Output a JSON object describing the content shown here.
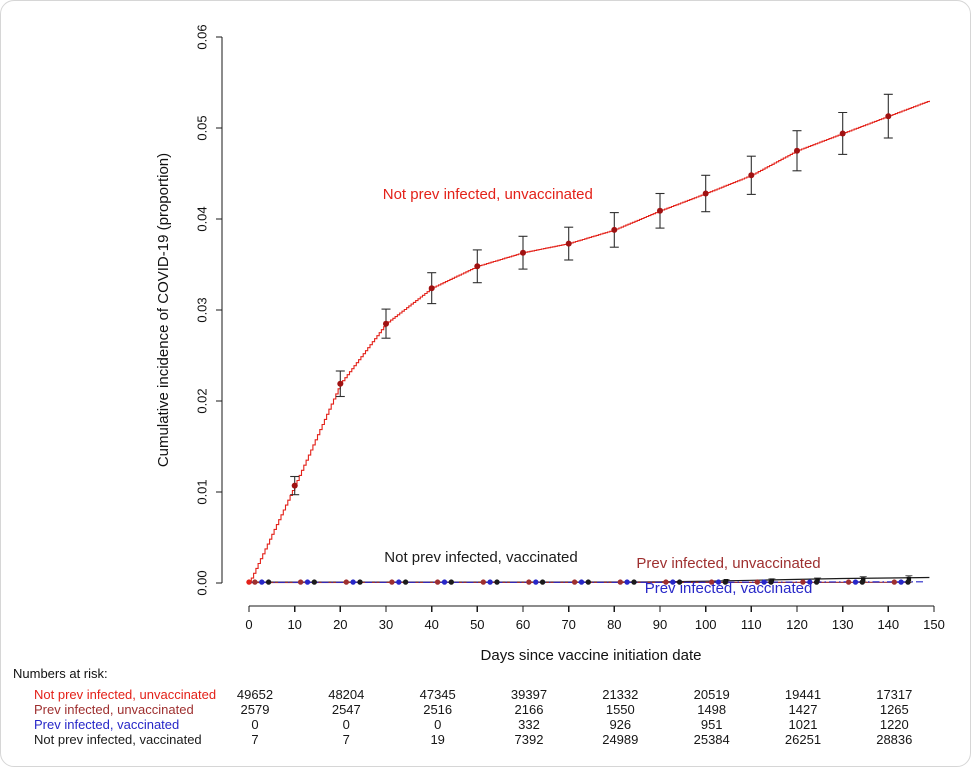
{
  "chart_data": {
    "type": "line",
    "title": "",
    "xlabel": "Days since vaccine initiation date",
    "ylabel": "Cumulative incidence of COVID-19 (proportion)",
    "xlim": [
      0,
      150
    ],
    "ylim": [
      0,
      0.06
    ],
    "xticks": [
      0,
      10,
      20,
      30,
      40,
      50,
      60,
      70,
      80,
      90,
      100,
      110,
      120,
      130,
      140,
      150
    ],
    "ytick_labels": [
      "0.00",
      "0.01",
      "0.02",
      "0.03",
      "0.04",
      "0.05",
      "0.06"
    ],
    "grid": false,
    "legend": "in-plot colored labels",
    "series": [
      {
        "name": "Not prev infected, unvaccinated",
        "style": "step",
        "color": "#e32119",
        "marker_color": "#a01212",
        "x": [
          0,
          10,
          20,
          30,
          40,
          50,
          60,
          70,
          80,
          90,
          100,
          110,
          120,
          130,
          140,
          149
        ],
        "y": [
          0,
          0.0107,
          0.0219,
          0.0285,
          0.0324,
          0.0348,
          0.0363,
          0.0373,
          0.0388,
          0.0409,
          0.0428,
          0.0448,
          0.0475,
          0.0494,
          0.0513,
          0.053
        ],
        "marker_days": [
          10,
          20,
          30,
          40,
          50,
          60,
          70,
          80,
          90,
          100,
          110,
          120,
          130,
          140
        ],
        "marker_ci": [
          0.001,
          0.0014,
          0.0016,
          0.0017,
          0.0018,
          0.0018,
          0.0018,
          0.0019,
          0.0019,
          0.002,
          0.0021,
          0.0022,
          0.0023,
          0.0024
        ],
        "label_at": [
          52.3,
          0.0422
        ]
      },
      {
        "name": "Not prev infected, vaccinated",
        "style": "line",
        "color": "#1b1b1b",
        "x": [
          0,
          60,
          90,
          100,
          110,
          120,
          130,
          140,
          149
        ],
        "y": [
          0.0001,
          0.0001,
          0.00012,
          0.0002,
          0.0003,
          0.0004,
          0.0005,
          0.00055,
          0.0006
        ],
        "squares": {
          "days": [
            104.5,
            114.5,
            124.5,
            134.5,
            144.5
          ],
          "values": [
            0.0002,
            0.00025,
            0.0003,
            0.0004,
            0.00045
          ],
          "ci": [
            0.00015,
            0.0002,
            0.00025,
            0.0003,
            0.00035
          ]
        },
        "label_at": [
          50.8,
          0.00231
        ]
      },
      {
        "name": "Prev infected, unvaccinated",
        "style": "line",
        "color": "#9e2f2f",
        "x": [
          0,
          145
        ],
        "y": [
          6e-05,
          8e-05
        ],
        "label_at": [
          105,
          0.00165
        ]
      },
      {
        "name": "Prev infected, vaccinated",
        "style": "line",
        "dash": "7 3 1.5 3",
        "color": "#2727c8",
        "x": [
          0,
          100,
          110,
          120,
          130,
          140,
          148
        ],
        "y": [
          8e-05,
          8e-05,
          0.0001,
          0.0001,
          0.00012,
          0.00012,
          0.00013
        ],
        "label_at": [
          105,
          -0.0011
        ]
      }
    ],
    "rug_dots": {
      "interval": 10,
      "first_day": 0,
      "last_day": 140,
      "at_value": 0.0001,
      "offsets": [
        {
          "color": "#9e2f2f",
          "dx": 1.3
        },
        {
          "color": "#2727c8",
          "dx": 2.8
        },
        {
          "color": "#1b1b1b",
          "dx": 4.3
        }
      ],
      "origin_dot_color": "#e32119"
    }
  },
  "risk_table": {
    "header": "Numbers at risk:",
    "days": [
      0,
      20,
      40,
      60,
      80,
      100,
      120,
      140
    ],
    "rows": [
      {
        "label": "Not prev infected, unvaccinated",
        "color": "#e32119",
        "values": [
          49652,
          48204,
          47345,
          39397,
          21332,
          20519,
          19441,
          17317
        ]
      },
      {
        "label": "Prev infected, unvaccinated",
        "color": "#9e2f2f",
        "values": [
          2579,
          2547,
          2516,
          2166,
          1550,
          1498,
          1427,
          1265
        ]
      },
      {
        "label": "Prev infected, vaccinated",
        "color": "#2727c8",
        "values": [
          0,
          0,
          0,
          332,
          926,
          951,
          1021,
          1220
        ]
      },
      {
        "label": "Not prev infected, vaccinated",
        "color": "#1b1b1b",
        "values": [
          7,
          7,
          19,
          7392,
          24989,
          25384,
          26251,
          28836
        ]
      }
    ]
  }
}
